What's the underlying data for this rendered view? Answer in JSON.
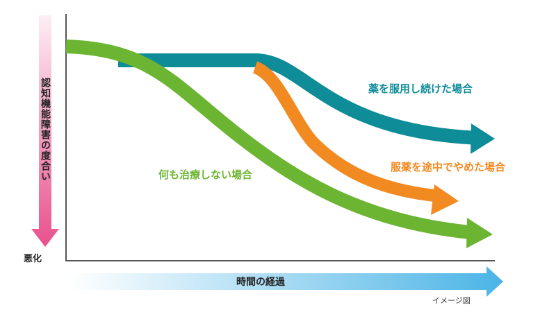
{
  "y_axis": {
    "label": "認知機能障害の度合い",
    "end_label": "悪化"
  },
  "x_axis": {
    "label": "時間の経過"
  },
  "note": "イメージ図",
  "curves": [
    {
      "id": "continued",
      "label": "薬を服用し続けた場合",
      "color": "#0e8c98"
    },
    {
      "id": "stopped",
      "label": "服薬を途中でやめた場合",
      "color": "#f28a22"
    },
    {
      "id": "untreated",
      "label": "何も治療しない場合",
      "color": "#6cb533"
    }
  ],
  "colors": {
    "axis": "#555555",
    "y_arrow_top": "#fdeef4",
    "y_arrow_bottom": "#e8508c",
    "x_arrow_start": "#ffffff",
    "x_arrow_end": "#4bb4e6"
  }
}
